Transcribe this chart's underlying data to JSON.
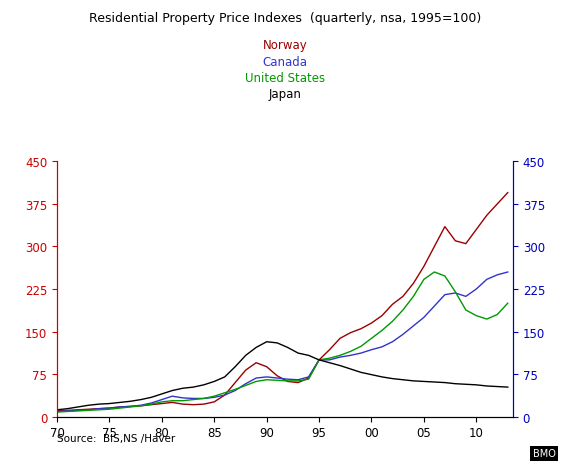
{
  "title": "Residential Property Price Indexes  (quarterly, nsa, 1995=100)",
  "legend": [
    "Norway",
    "Canada",
    "United States",
    "Japan"
  ],
  "legend_colors": [
    "#990000",
    "#3333CC",
    "#009900",
    "#000000"
  ],
  "source": "Source:  BIS,NS /Haver",
  "watermark": "BMO",
  "ylim": [
    0,
    450
  ],
  "yticks": [
    0,
    75,
    150,
    225,
    300,
    375,
    450
  ],
  "xlim": [
    1970,
    2013.5
  ],
  "xtick_vals": [
    1970,
    1975,
    1980,
    1985,
    1990,
    1995,
    2000,
    2005,
    2010
  ],
  "xtick_labels": [
    "70",
    "75",
    "80",
    "85",
    "90",
    "95",
    "00",
    "05",
    "10"
  ],
  "norway": {
    "x": [
      1970,
      1971,
      1972,
      1973,
      1974,
      1975,
      1976,
      1977,
      1978,
      1979,
      1980,
      1981,
      1982,
      1983,
      1984,
      1985,
      1986,
      1987,
      1988,
      1989,
      1990,
      1991,
      1992,
      1993,
      1994,
      1995,
      1996,
      1997,
      1998,
      1999,
      2000,
      2001,
      2002,
      2003,
      2004,
      2005,
      2006,
      2007,
      2008,
      2009,
      2010,
      2011,
      2012,
      2013
    ],
    "y": [
      10,
      11,
      12,
      13,
      14,
      15,
      17,
      18,
      19,
      21,
      23,
      25,
      22,
      21,
      22,
      26,
      38,
      60,
      82,
      95,
      88,
      72,
      62,
      60,
      68,
      100,
      118,
      138,
      148,
      155,
      165,
      178,
      198,
      212,
      235,
      265,
      300,
      335,
      310,
      305,
      330,
      355,
      375,
      395
    ]
  },
  "canada": {
    "x": [
      1970,
      1971,
      1972,
      1973,
      1974,
      1975,
      1976,
      1977,
      1978,
      1979,
      1980,
      1981,
      1982,
      1983,
      1984,
      1985,
      1986,
      1987,
      1988,
      1989,
      1990,
      1991,
      1992,
      1993,
      1994,
      1995,
      1996,
      1997,
      1998,
      1999,
      2000,
      2001,
      2002,
      2003,
      2004,
      2005,
      2006,
      2007,
      2008,
      2009,
      2010,
      2011,
      2012,
      2013
    ],
    "y": [
      9,
      10,
      11,
      12,
      14,
      15,
      17,
      18,
      20,
      24,
      30,
      36,
      33,
      32,
      32,
      34,
      38,
      46,
      58,
      68,
      70,
      68,
      66,
      65,
      70,
      100,
      100,
      105,
      108,
      112,
      118,
      123,
      132,
      145,
      160,
      175,
      195,
      215,
      218,
      212,
      225,
      242,
      250,
      255
    ]
  },
  "us": {
    "x": [
      1970,
      1971,
      1972,
      1973,
      1974,
      1975,
      1976,
      1977,
      1978,
      1979,
      1980,
      1981,
      1982,
      1983,
      1984,
      1985,
      1986,
      1987,
      1988,
      1989,
      1990,
      1991,
      1992,
      1993,
      1994,
      1995,
      1996,
      1997,
      1998,
      1999,
      2000,
      2001,
      2002,
      2003,
      2004,
      2005,
      2006,
      2007,
      2008,
      2009,
      2010,
      2011,
      2012,
      2013
    ],
    "y": [
      8,
      9,
      10,
      11,
      12,
      13,
      15,
      17,
      19,
      22,
      26,
      28,
      28,
      30,
      32,
      36,
      42,
      48,
      55,
      62,
      65,
      64,
      63,
      63,
      66,
      100,
      103,
      108,
      115,
      124,
      138,
      152,
      168,
      188,
      212,
      242,
      255,
      248,
      220,
      188,
      178,
      172,
      180,
      200
    ]
  },
  "japan": {
    "x": [
      1970,
      1971,
      1972,
      1973,
      1974,
      1975,
      1976,
      1977,
      1978,
      1979,
      1980,
      1981,
      1982,
      1983,
      1984,
      1985,
      1986,
      1987,
      1988,
      1989,
      1990,
      1991,
      1992,
      1993,
      1994,
      1995,
      1996,
      1997,
      1998,
      1999,
      2000,
      2001,
      2002,
      2003,
      2004,
      2005,
      2006,
      2007,
      2008,
      2009,
      2010,
      2011,
      2012,
      2013
    ],
    "y": [
      12,
      14,
      17,
      20,
      22,
      23,
      25,
      27,
      30,
      34,
      40,
      46,
      50,
      52,
      56,
      62,
      70,
      88,
      108,
      122,
      132,
      130,
      122,
      112,
      108,
      100,
      95,
      90,
      84,
      78,
      74,
      70,
      67,
      65,
      63,
      62,
      61,
      60,
      58,
      57,
      56,
      54,
      53,
      52
    ]
  },
  "norway_color": "#990000",
  "canada_color": "#3333CC",
  "us_color": "#009900",
  "japan_color": "#000000",
  "left_axis_color": "#CC0000",
  "right_axis_color": "#0000BB",
  "bg_color": "#FFFFFF"
}
